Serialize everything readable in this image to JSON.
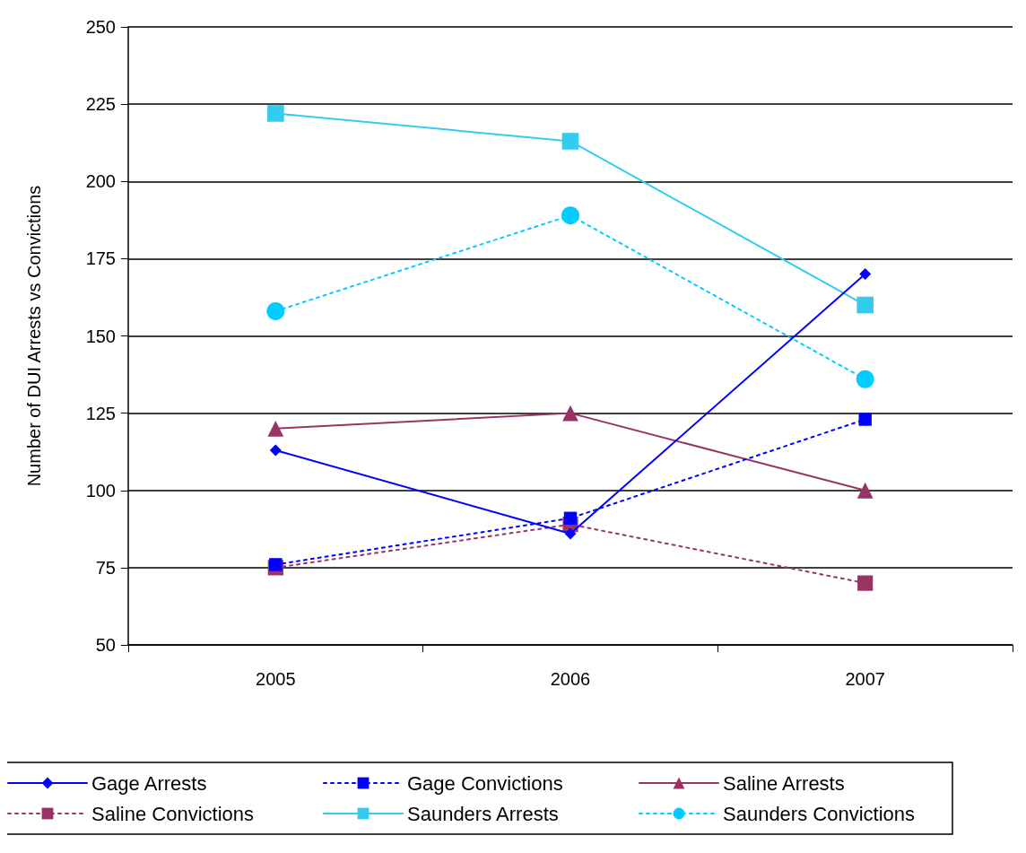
{
  "chart_data": {
    "type": "line",
    "ylabel": "Number of DUI Arrests vs Convictions",
    "categories": [
      "2005",
      "2006",
      "2007"
    ],
    "ylim": [
      50,
      250
    ],
    "yticks": [
      50,
      75,
      100,
      125,
      150,
      175,
      200,
      225,
      250
    ],
    "grid": "y",
    "legend": "bottom",
    "series": [
      {
        "name": "Gage Arrests",
        "color": "#0000ff",
        "marker": "diamond",
        "line_style": "solid",
        "values": [
          113,
          86,
          170
        ]
      },
      {
        "name": "Gage Convictions",
        "color": "#0000ff",
        "marker": "square",
        "line_style": "dotted",
        "values": [
          76,
          91,
          123
        ]
      },
      {
        "name": "Saline Arrests",
        "color": "#993366",
        "marker": "triangle",
        "line_style": "solid",
        "values": [
          120,
          125,
          100
        ]
      },
      {
        "name": "Saline Convictions",
        "color": "#993366",
        "marker": "square",
        "line_style": "dotted",
        "values": [
          75,
          89,
          70
        ]
      },
      {
        "name": "Saunders Arrests",
        "color": "#33ccee",
        "marker": "square",
        "line_style": "solid",
        "values": [
          222,
          213,
          160
        ]
      },
      {
        "name": "Saunders Convictions",
        "color": "#00ccff",
        "marker": "circle",
        "line_style": "dotted",
        "values": [
          158,
          189,
          136
        ]
      }
    ]
  }
}
